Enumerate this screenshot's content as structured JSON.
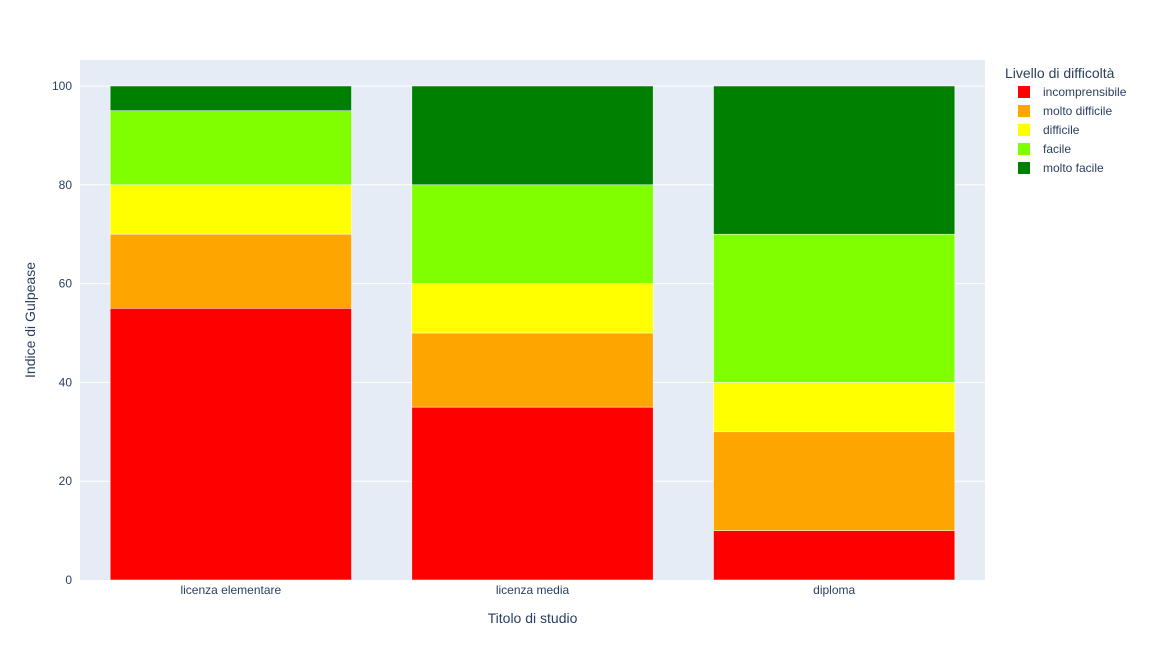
{
  "chart_data": {
    "type": "bar",
    "stacked": true,
    "categories": [
      "licenza elementare",
      "licenza media",
      "diploma"
    ],
    "series": [
      {
        "name": "incomprensibile",
        "color": "#ff0000",
        "values": [
          55,
          35,
          10
        ]
      },
      {
        "name": "molto difficile",
        "color": "#ffa500",
        "values": [
          15,
          15,
          20
        ]
      },
      {
        "name": "difficile",
        "color": "#ffff00",
        "values": [
          10,
          10,
          10
        ]
      },
      {
        "name": "facile",
        "color": "#7fff00",
        "values": [
          15,
          20,
          30
        ]
      },
      {
        "name": "molto facile",
        "color": "#008000",
        "values": [
          5,
          20,
          30
        ]
      }
    ],
    "xlabel": "Titolo di studio",
    "ylabel": "Indice di Gulpease",
    "legend_title": "Livello di difficoltà",
    "legend_position": "top-right",
    "yticks": [
      0,
      20,
      40,
      60,
      80,
      100
    ],
    "ylim": [
      0,
      105.26
    ],
    "grid": true,
    "plot_background": "#e5ecf6"
  }
}
